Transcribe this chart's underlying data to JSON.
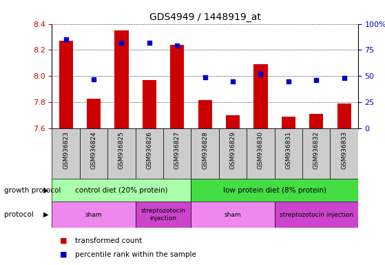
{
  "title": "GDS4949 / 1448919_at",
  "samples": [
    "GSM936823",
    "GSM936824",
    "GSM936825",
    "GSM936826",
    "GSM936827",
    "GSM936828",
    "GSM936829",
    "GSM936830",
    "GSM936831",
    "GSM936832",
    "GSM936833"
  ],
  "transformed_count": [
    8.27,
    7.83,
    8.35,
    7.97,
    8.24,
    7.82,
    7.7,
    8.09,
    7.69,
    7.71,
    7.79
  ],
  "percentile_rank": [
    85,
    47,
    82,
    82,
    79,
    49,
    45,
    52,
    45,
    46,
    48
  ],
  "ymin": 7.6,
  "ymax": 8.4,
  "yticks": [
    7.6,
    7.8,
    8.0,
    8.2,
    8.4
  ],
  "right_yticks": [
    0,
    25,
    50,
    75,
    100
  ],
  "bar_color": "#cc0000",
  "dot_color": "#0000cc",
  "growth_protocol_groups": [
    {
      "label": "control diet (20% protein)",
      "start": 0,
      "end": 5,
      "color": "#aaffaa"
    },
    {
      "label": "low protein diet (8% protein)",
      "start": 5,
      "end": 11,
      "color": "#44dd44"
    }
  ],
  "protocol_groups": [
    {
      "label": "sham",
      "start": 0,
      "end": 3,
      "color": "#ee88ee"
    },
    {
      "label": "streptozotocin\ninjection",
      "start": 3,
      "end": 5,
      "color": "#cc44cc"
    },
    {
      "label": "sham",
      "start": 5,
      "end": 8,
      "color": "#ee88ee"
    },
    {
      "label": "streptozotocin injection",
      "start": 8,
      "end": 11,
      "color": "#cc44cc"
    }
  ],
  "tick_label_color_left": "#cc0000",
  "tick_label_color_right": "#0000cc",
  "xtick_bg_color": "#cccccc"
}
